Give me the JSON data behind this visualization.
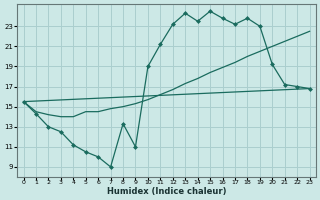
{
  "xlabel": "Humidex (Indice chaleur)",
  "bg_color": "#cce8e6",
  "grid_color": "#aacece",
  "line_color": "#1a6b5e",
  "xlim": [
    -0.5,
    23.5
  ],
  "ylim": [
    8.0,
    25.2
  ],
  "xticks": [
    0,
    1,
    2,
    3,
    4,
    5,
    6,
    7,
    8,
    9,
    10,
    11,
    12,
    13,
    14,
    15,
    16,
    17,
    18,
    19,
    20,
    21,
    22,
    23
  ],
  "yticks": [
    9,
    11,
    13,
    15,
    17,
    19,
    21,
    23
  ],
  "line1_x": [
    0,
    1,
    2,
    3,
    4,
    5,
    6,
    7,
    8,
    9,
    10,
    11,
    12,
    13,
    14,
    15,
    16,
    17,
    18,
    19,
    20,
    21,
    22,
    23
  ],
  "line1_y": [
    15.5,
    14.3,
    13.0,
    12.5,
    11.2,
    10.5,
    10.0,
    9.0,
    13.3,
    11.0,
    19.0,
    21.2,
    23.2,
    24.3,
    23.5,
    24.5,
    23.8,
    23.2,
    23.8,
    23.0,
    19.2,
    17.2,
    17.0,
    16.8
  ],
  "line2_x": [
    0,
    23
  ],
  "line2_y": [
    15.5,
    16.8
  ],
  "line3_x": [
    0,
    1,
    2,
    3,
    4,
    5,
    6,
    7,
    8,
    9,
    10,
    11,
    12,
    13,
    14,
    15,
    16,
    17,
    18,
    19,
    20,
    21,
    22,
    23
  ],
  "line3_y": [
    15.5,
    14.5,
    14.2,
    14.0,
    14.0,
    14.5,
    14.5,
    14.8,
    15.0,
    15.3,
    15.7,
    16.2,
    16.7,
    17.3,
    17.8,
    18.4,
    18.9,
    19.4,
    20.0,
    20.5,
    21.0,
    21.5,
    22.0,
    22.5
  ]
}
